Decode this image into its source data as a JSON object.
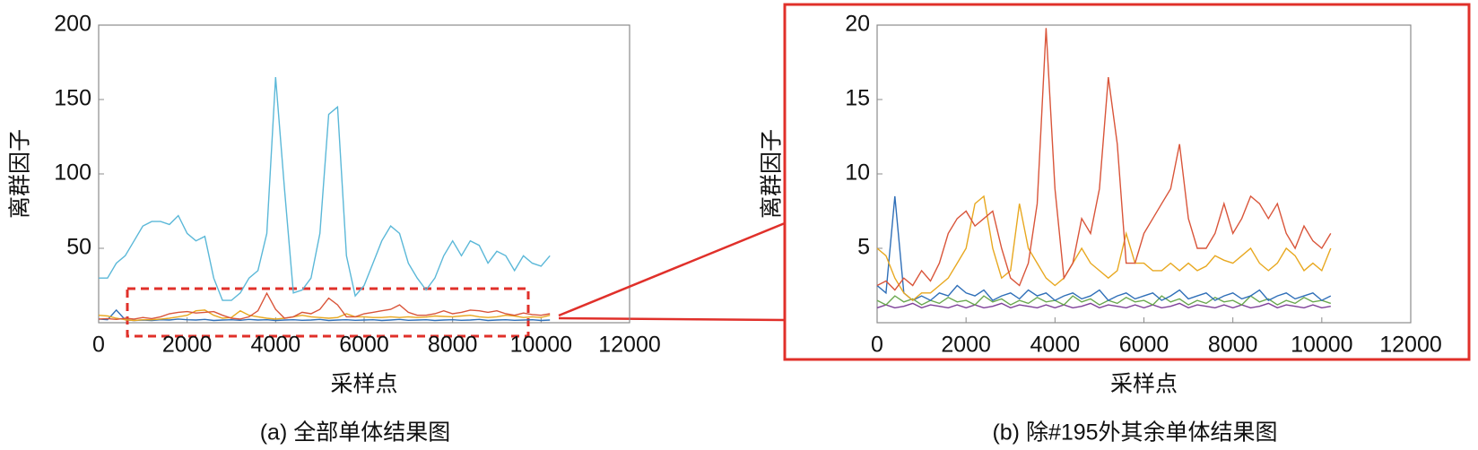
{
  "chart_data": [
    {
      "type": "line",
      "ylabel": "离群因子",
      "xlabel": "采样点",
      "caption": "(a) 全部单体结果图",
      "xlim": [
        0,
        12000
      ],
      "xticks": [
        0,
        2000,
        4000,
        6000,
        8000,
        10000,
        12000
      ],
      "ylim": [
        0,
        200
      ],
      "yticks": [
        50,
        100,
        150,
        200
      ],
      "x": [
        0,
        200,
        400,
        600,
        800,
        1000,
        1200,
        1400,
        1600,
        1800,
        2000,
        2200,
        2400,
        2600,
        2800,
        3000,
        3200,
        3400,
        3600,
        3800,
        4000,
        4200,
        4400,
        4600,
        4800,
        5000,
        5200,
        5400,
        5600,
        5800,
        6000,
        6200,
        6400,
        6600,
        6800,
        7000,
        7200,
        7400,
        7600,
        7800,
        8000,
        8200,
        8400,
        8600,
        8800,
        9000,
        9200,
        9400,
        9600,
        9800,
        10000,
        10200
      ],
      "series": [
        {
          "color": "#2f6fb8",
          "values": [
            2.5,
            2,
            8.5,
            2,
            1.5,
            1.8,
            1.5,
            2,
            1.8,
            2.5,
            2,
            1.8,
            2.2,
            1.5,
            1.8,
            2,
            1.6,
            2.2,
            1.8,
            2,
            1.5,
            1.8,
            2,
            1.6,
            1.8,
            2.2,
            1.5,
            1.8,
            2,
            1.6,
            1.8,
            2,
            1.5,
            1.8,
            2.2,
            1.6,
            1.8,
            2,
            1.5,
            1.8,
            2,
            1.6,
            1.8,
            2.2,
            1.5,
            1.8,
            2,
            1.6,
            1.8,
            2,
            1.5,
            1.8
          ]
        },
        {
          "color": "#e8a820",
          "values": [
            5,
            4.5,
            3,
            2,
            1.5,
            2,
            2,
            2.5,
            3,
            4,
            5,
            8,
            8.5,
            5,
            3,
            3.5,
            8,
            5,
            4,
            3,
            2.5,
            3,
            4,
            5,
            4,
            3.5,
            3,
            3.5,
            6,
            4,
            4,
            3.5,
            3.5,
            4,
            3.5,
            4,
            3.5,
            3.8,
            4.5,
            4.2,
            4,
            4.5,
            5,
            4,
            3.5,
            4,
            5,
            4.5,
            3.5,
            4,
            3.5,
            5
          ]
        },
        {
          "color": "#d9553a",
          "values": [
            2.5,
            2.8,
            2.2,
            3,
            2.5,
            3.5,
            2.8,
            4,
            6,
            7,
            7.5,
            6.5,
            7,
            7.5,
            5,
            3,
            2.5,
            4,
            8,
            19.8,
            9,
            3,
            4,
            7,
            6,
            9,
            16.5,
            12,
            4,
            4,
            6,
            7,
            8,
            9,
            12,
            7,
            5,
            5,
            6,
            8,
            6,
            7,
            8.5,
            8,
            7,
            8,
            6,
            5,
            6.5,
            5.5,
            5,
            6
          ]
        },
        {
          "color": "#5bb8d8",
          "values": [
            30,
            30,
            40,
            45,
            55,
            65,
            68,
            68,
            66,
            72,
            60,
            55,
            58,
            30,
            15,
            15,
            20,
            30,
            35,
            60,
            165,
            90,
            20,
            22,
            30,
            60,
            140,
            145,
            45,
            18,
            25,
            40,
            55,
            65,
            60,
            40,
            30,
            22,
            30,
            45,
            55,
            45,
            55,
            52,
            40,
            48,
            45,
            35,
            45,
            40,
            38,
            45
          ]
        }
      ]
    },
    {
      "type": "line",
      "ylabel": "离群因子",
      "xlabel": "采样点",
      "caption": "(b) 除#195外其余单体结果图",
      "xlim": [
        0,
        12000
      ],
      "xticks": [
        0,
        2000,
        4000,
        6000,
        8000,
        10000,
        12000
      ],
      "ylim": [
        0,
        20
      ],
      "yticks": [
        5,
        10,
        15,
        20
      ],
      "x": [
        0,
        200,
        400,
        600,
        800,
        1000,
        1200,
        1400,
        1600,
        1800,
        2000,
        2200,
        2400,
        2600,
        2800,
        3000,
        3200,
        3400,
        3600,
        3800,
        4000,
        4200,
        4400,
        4600,
        4800,
        5000,
        5200,
        5400,
        5600,
        5800,
        6000,
        6200,
        6400,
        6600,
        6800,
        7000,
        7200,
        7400,
        7600,
        7800,
        8000,
        8200,
        8400,
        8600,
        8800,
        9000,
        9200,
        9400,
        9600,
        9800,
        10000,
        10200
      ],
      "series": [
        {
          "color": "#7e3f98",
          "values": [
            1,
            1.2,
            1,
            1.1,
            1.3,
            1,
            1.2,
            1.1,
            1,
            1.2,
            1,
            1.2,
            1,
            1.1,
            1.3,
            1,
            1.2,
            1.1,
            1,
            1.2,
            1,
            1.2,
            1,
            1.1,
            1.3,
            1,
            1.2,
            1.1,
            1,
            1.2,
            1,
            1.2,
            1,
            1.1,
            1.3,
            1,
            1.2,
            1.1,
            1,
            1.2,
            1,
            1.2,
            1,
            1.1,
            1.3,
            1,
            1.2,
            1.1,
            1,
            1.2,
            1,
            1.1
          ]
        },
        {
          "color": "#6aa84f",
          "values": [
            1.5,
            1.2,
            1.8,
            1.4,
            1.6,
            1.2,
            1.5,
            1.3,
            1.7,
            1.4,
            1.5,
            1.2,
            1.8,
            1.4,
            1.6,
            1.2,
            1.5,
            1.3,
            1.7,
            1.4,
            1.5,
            1.2,
            1.8,
            1.4,
            1.6,
            1.2,
            1.5,
            1.3,
            1.7,
            1.4,
            1.5,
            1.2,
            1.8,
            1.4,
            1.6,
            1.2,
            1.5,
            1.3,
            1.7,
            1.4,
            1.5,
            1.2,
            1.8,
            1.4,
            1.6,
            1.2,
            1.5,
            1.3,
            1.7,
            1.4,
            1.5,
            1.3
          ]
        },
        {
          "color": "#2f6fb8",
          "values": [
            2.5,
            2,
            8.5,
            2,
            1.5,
            1.8,
            1.5,
            2,
            1.8,
            2.5,
            2,
            1.8,
            2.2,
            1.5,
            1.8,
            2,
            1.6,
            2.2,
            1.8,
            2,
            1.5,
            1.8,
            2,
            1.6,
            1.8,
            2.2,
            1.5,
            1.8,
            2,
            1.6,
            1.8,
            2,
            1.5,
            1.8,
            2.2,
            1.6,
            1.8,
            2,
            1.5,
            1.8,
            2,
            1.6,
            1.8,
            2.2,
            1.5,
            1.8,
            2,
            1.6,
            1.8,
            2,
            1.5,
            1.8
          ]
        },
        {
          "color": "#e8a820",
          "values": [
            5,
            4.5,
            3,
            2,
            1.5,
            2,
            2,
            2.5,
            3,
            4,
            5,
            8,
            8.5,
            5,
            3,
            3.5,
            8,
            5,
            4,
            3,
            2.5,
            3,
            4,
            5,
            4,
            3.5,
            3,
            3.5,
            6,
            4,
            4,
            3.5,
            3.5,
            4,
            3.5,
            4,
            3.5,
            3.8,
            4.5,
            4.2,
            4,
            4.5,
            5,
            4,
            3.5,
            4,
            5,
            4.5,
            3.5,
            4,
            3.5,
            5
          ]
        },
        {
          "color": "#d9553a",
          "values": [
            2.5,
            2.8,
            2.2,
            3,
            2.5,
            3.5,
            2.8,
            4,
            6,
            7,
            7.5,
            6.5,
            7,
            7.5,
            5,
            3,
            2.5,
            4,
            8,
            19.8,
            9,
            3,
            4,
            7,
            6,
            9,
            16.5,
            12,
            4,
            4,
            6,
            7,
            8,
            9,
            12,
            7,
            5,
            5,
            6,
            8,
            6,
            7,
            8.5,
            8,
            7,
            8,
            6,
            5,
            6.5,
            5.5,
            5,
            6
          ]
        }
      ]
    }
  ]
}
